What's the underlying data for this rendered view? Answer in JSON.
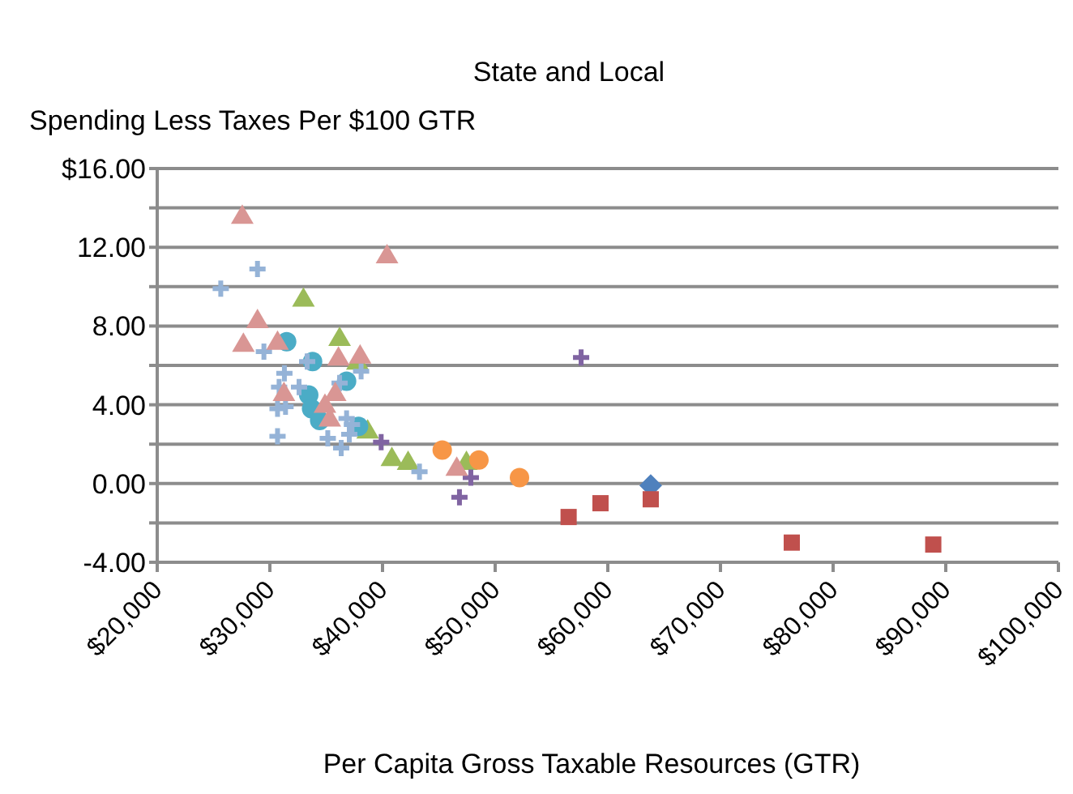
{
  "chart_data": {
    "type": "scatter",
    "title": "State and Local",
    "ylabel": "Spending Less Taxes Per $100 GTR",
    "xlabel": "Per Capita Gross Taxable Resources (GTR)",
    "xlim": [
      20000,
      100000
    ],
    "xticks": [
      {
        "value": 20000,
        "label": "$20,000"
      },
      {
        "value": 30000,
        "label": "$30,000"
      },
      {
        "value": 40000,
        "label": "$40,000"
      },
      {
        "value": 50000,
        "label": "$50,000"
      },
      {
        "value": 60000,
        "label": "$60,000"
      },
      {
        "value": 70000,
        "label": "$70,000"
      },
      {
        "value": 80000,
        "label": "$80,000"
      },
      {
        "value": 90000,
        "label": "$90,000"
      },
      {
        "value": 100000,
        "label": "$100,000"
      }
    ],
    "ylim": [
      -4,
      16
    ],
    "yticks": [
      {
        "value": -4,
        "label": "-4.00"
      },
      {
        "value": -2,
        "label": null
      },
      {
        "value": 0,
        "label": "0.00"
      },
      {
        "value": 2,
        "label": null
      },
      {
        "value": 4,
        "label": "4.00"
      },
      {
        "value": 6,
        "label": null
      },
      {
        "value": 8,
        "label": "8.00"
      },
      {
        "value": 10,
        "label": null
      },
      {
        "value": 12,
        "label": "12.00"
      },
      {
        "value": 14,
        "label": null
      },
      {
        "value": 16,
        "label": "$16.00"
      }
    ],
    "grid": "y",
    "series": [
      {
        "color": "#4f81bd",
        "marker": "diamond",
        "x": [
          63810
        ],
        "values": [
          -0.1
        ]
      },
      {
        "color": "#c0504d",
        "marker": "square",
        "x": [
          56520,
          59350,
          63810,
          76330,
          88890
        ],
        "values": [
          -1.7,
          -1.0,
          -0.8,
          -3.0,
          -3.1
        ]
      },
      {
        "color": "#9bbb59",
        "marker": "triangle",
        "x": [
          32980,
          36190,
          37770,
          38680,
          40830,
          42270,
          47450
        ],
        "values": [
          9.4,
          7.4,
          6.2,
          2.7,
          1.3,
          1.1,
          1.1
        ]
      },
      {
        "color": "#8064a2",
        "marker": "cross",
        "x": [
          39880,
          57630,
          47840,
          46830
        ],
        "values": [
          2.1,
          6.4,
          0.3,
          -0.7
        ]
      },
      {
        "color": "#4bacc6",
        "marker": "circle",
        "x": [
          31490,
          33790,
          36810,
          33450,
          33700,
          34420,
          37870
        ],
        "values": [
          7.2,
          6.2,
          5.2,
          4.5,
          3.8,
          3.2,
          2.9
        ]
      },
      {
        "color": "#f79646",
        "marker": "circle",
        "x": [
          45300,
          48560,
          52160
        ],
        "values": [
          1.7,
          1.2,
          0.3
        ]
      },
      {
        "color": "#95b3d7",
        "marker": "cross",
        "x": [
          28900,
          25640,
          29470,
          33310,
          31290,
          30820,
          32590,
          31390,
          30680,
          38100,
          36190,
          36810,
          37290,
          30680,
          35140,
          36330,
          37050,
          43280
        ],
        "values": [
          10.9,
          9.9,
          6.7,
          6.2,
          5.6,
          4.9,
          4.9,
          3.9,
          3.8,
          5.7,
          5.1,
          3.3,
          3.0,
          2.4,
          2.3,
          1.8,
          2.5,
          0.6
        ]
      },
      {
        "color": "#d99694",
        "marker": "triangle",
        "x": [
          27550,
          40400,
          28900,
          27650,
          30680,
          36090,
          38010,
          31250,
          35800,
          34890,
          35320,
          46590
        ],
        "values": [
          13.6,
          11.6,
          8.3,
          7.1,
          7.2,
          6.4,
          6.5,
          4.6,
          4.6,
          4.0,
          3.3,
          0.8
        ]
      }
    ]
  }
}
